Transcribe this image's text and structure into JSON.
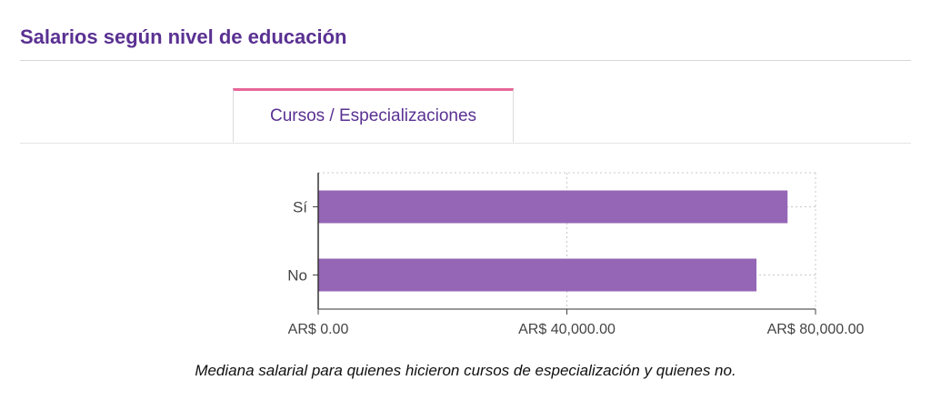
{
  "header": {
    "title": "Salarios según nivel de educación"
  },
  "tabs": [
    {
      "label": "Cursos / Especializaciones",
      "active": true
    }
  ],
  "colors": {
    "accent": "#5a3192",
    "bar": "#9566b5",
    "tab_indicator": "#e8669a"
  },
  "chart_data": {
    "type": "bar",
    "orientation": "horizontal",
    "categories": [
      "Sí",
      "No"
    ],
    "values": [
      75500,
      70500
    ],
    "xlim": [
      0,
      80000
    ],
    "x_ticks": [
      0,
      40000,
      80000
    ],
    "x_tick_labels": [
      "AR$ 0.00",
      "AR$ 40,000.00",
      "AR$ 80,000.00"
    ],
    "grid": true,
    "caption": "Mediana salarial para quienes hicieron cursos de especialización y quienes no."
  }
}
